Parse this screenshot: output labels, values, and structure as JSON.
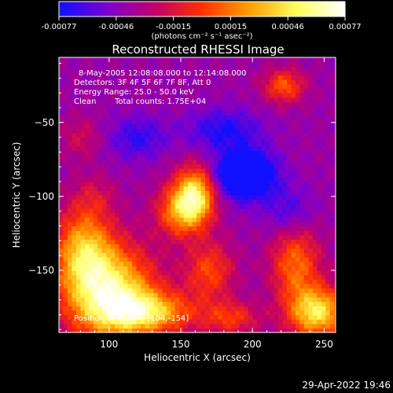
{
  "colorbar": {
    "ticks": [
      "-0.00077",
      "-0.00046",
      "-0.00015",
      "0.00015",
      "0.00046",
      "0.00077"
    ],
    "units": "(photons cm⁻² s⁻¹ asec⁻²)",
    "stops": [
      "#1010ff",
      "#7a00d0",
      "#c0006a",
      "#ff3000",
      "#ffa000",
      "#ffff60",
      "#ffffff"
    ]
  },
  "chart_data": {
    "type": "heatmap",
    "title": "Reconstructed RHESSI Image",
    "xlabel": "Heliocentric X (arcsec)",
    "ylabel": "Heliocentric Y (arcsec)",
    "xlim": [
      65,
      258
    ],
    "ylim": [
      -192,
      -6
    ],
    "xticks": [
      "100",
      "150",
      "200",
      "250"
    ],
    "yticks": [
      "-50",
      "-100",
      "-150"
    ],
    "annotations": [
      "8-May-2005 12:08:08.000 to 12:14:08.000",
      "Detectors: 3F 4F 5F 6F 7F 8F, Att 0",
      "Energy Range: 25.0 - 50.0 keV",
      "Clean",
      "Total counts: 1.75E+04"
    ],
    "peak_label": "Position of Peak = [104,-154]",
    "peak": [
      104,
      -154
    ],
    "blobs": [
      {
        "x": 100,
        "y": -165,
        "amp": 1.0,
        "sx": 22,
        "sy": 22
      },
      {
        "x": 128,
        "y": -178,
        "amp": 0.7,
        "sx": 22,
        "sy": 10
      },
      {
        "x": 82,
        "y": -135,
        "amp": 0.65,
        "sx": 14,
        "sy": 20
      },
      {
        "x": 160,
        "y": -98,
        "amp": 0.85,
        "sx": 10,
        "sy": 13
      },
      {
        "x": 150,
        "y": -110,
        "amp": 0.6,
        "sx": 12,
        "sy": 12
      },
      {
        "x": 170,
        "y": -150,
        "amp": 0.45,
        "sx": 12,
        "sy": 14
      },
      {
        "x": 245,
        "y": -178,
        "amp": 0.9,
        "sx": 14,
        "sy": 12
      },
      {
        "x": 230,
        "y": -145,
        "amp": 0.55,
        "sx": 12,
        "sy": 18
      },
      {
        "x": 222,
        "y": -25,
        "amp": 0.5,
        "sx": 10,
        "sy": 8
      },
      {
        "x": 185,
        "y": -182,
        "amp": 0.4,
        "sx": 14,
        "sy": 8
      },
      {
        "x": 80,
        "y": -60,
        "amp": 0.2,
        "sx": 10,
        "sy": 10
      },
      {
        "x": 90,
        "y": -100,
        "amp": 0.18,
        "sx": 10,
        "sy": 10
      }
    ],
    "negatives": [
      {
        "x": 195,
        "y": -85,
        "amp": -0.9,
        "sx": 14,
        "sy": 11
      },
      {
        "x": 180,
        "y": -55,
        "amp": -0.35,
        "sx": 18,
        "sy": 10
      },
      {
        "x": 120,
        "y": -60,
        "amp": -0.3,
        "sx": 14,
        "sy": 10
      },
      {
        "x": 225,
        "y": -110,
        "amp": -0.25,
        "sx": 12,
        "sy": 12
      }
    ]
  },
  "timestamp": "29-Apr-2022 19:46"
}
